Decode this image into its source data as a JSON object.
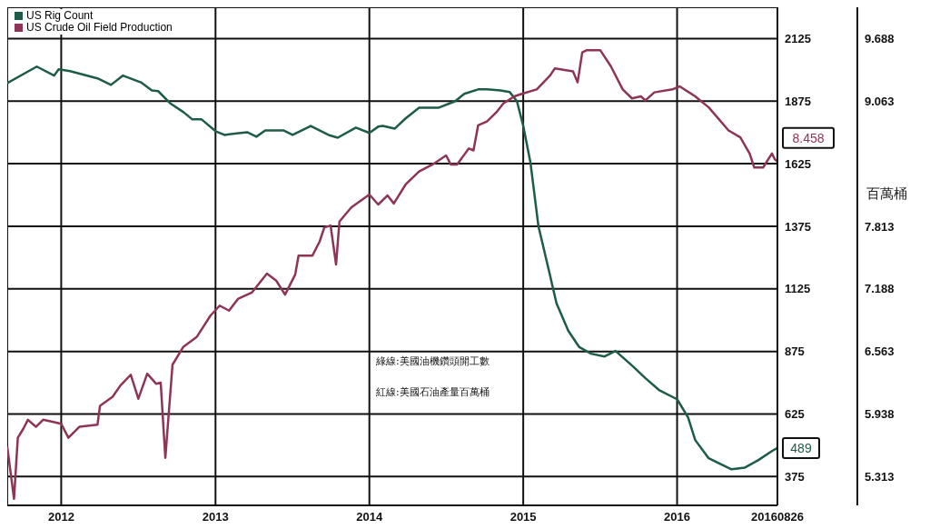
{
  "chart_data": {
    "type": "line",
    "xlim": [
      "2011-08-26",
      "2016-08-26"
    ],
    "xticks": [
      "2012",
      "2013",
      "2014",
      "2015",
      "2016",
      {
        "value": "2016-08-26",
        "label": "20160826"
      }
    ],
    "ylim": [
      260,
      2250
    ],
    "yticks": [
      375,
      625,
      875,
      1125,
      1375,
      1625,
      1875,
      2125
    ],
    "y2lim": [
      5.025,
      10.0
    ],
    "y2ticks": [
      5.313,
      5.938,
      6.563,
      7.188,
      7.813,
      9.063,
      9.688
    ],
    "y2label": "百萬桶",
    "grid": true,
    "legend": "top left",
    "annotations": [
      "綠線:美國油機鑽頭開工數",
      "紅線:美國石油產量百萬桶"
    ],
    "series": [
      {
        "name": "US Rig Count",
        "color": "#1d5c45",
        "x": [
          "2011-08-26",
          "2011-11-04",
          "2011-12-15",
          "2011-12-26",
          "2012-01-22",
          "2012-03-27",
          "2012-04-28",
          "2012-05-26",
          "2012-07-08",
          "2012-08-03",
          "2012-08-18",
          "2012-09-15",
          "2012-10-17",
          "2012-11-07",
          "2012-11-29",
          "2013-01-01",
          "2013-01-22",
          "2013-03-17",
          "2013-04-08",
          "2013-04-29",
          "2013-06-11",
          "2013-07-03",
          "2013-08-15",
          "2013-09-26",
          "2013-10-18",
          "2013-11-30",
          "2014-01-01",
          "2014-01-22",
          "2014-02-02",
          "2014-03-02",
          "2014-03-28",
          "2014-04-29",
          "2014-06-15",
          "2014-07-24",
          "2014-08-14",
          "2014-09-16",
          "2014-10-07",
          "2014-11-08",
          "2014-11-30",
          "2014-12-17",
          "2015-01-01",
          "2015-01-18",
          "2015-02-06",
          "2015-03-06",
          "2015-03-11",
          "2015-03-21",
          "2015-04-18",
          "2015-05-14",
          "2015-06-11",
          "2015-07-13",
          "2015-08-08",
          "2015-09-16",
          "2015-10-18",
          "2015-11-19",
          "2016-01-01",
          "2016-01-27",
          "2016-02-13",
          "2016-03-16",
          "2016-05-09",
          "2016-06-10",
          "2016-07-12",
          "2016-08-13",
          "2016-08-26"
        ],
        "values": [
          1947,
          2013,
          1977,
          2002,
          1995,
          1966,
          1940,
          1977,
          1950,
          1918,
          1915,
          1867,
          1831,
          1802,
          1802,
          1755,
          1740,
          1751,
          1733,
          1758,
          1758,
          1740,
          1776,
          1740,
          1729,
          1769,
          1748,
          1773,
          1776,
          1765,
          1806,
          1849,
          1849,
          1875,
          1904,
          1922,
          1922,
          1918,
          1911,
          1875,
          1776,
          1631,
          1376,
          1176,
          1139,
          1067,
          957,
          892,
          866,
          855,
          877,
          819,
          768,
          721,
          684,
          612,
          521,
          448,
          404,
          411,
          441,
          477,
          489
        ],
        "value_labels": [
          null,
          null,
          null,
          null,
          null,
          null,
          null,
          null,
          null,
          null,
          null,
          null,
          null,
          null,
          null,
          null,
          null,
          null,
          null,
          null,
          null,
          null,
          null,
          null,
          null,
          null,
          null,
          null,
          null,
          null,
          null,
          null,
          null,
          null,
          null,
          null,
          null,
          null,
          null,
          null,
          null,
          null,
          null,
          null,
          null,
          null,
          null,
          null,
          null,
          null,
          null,
          null,
          null,
          null,
          null,
          null,
          null,
          null,
          null,
          null,
          null,
          null,
          "489"
        ]
      },
      {
        "name": "US Crude Oil Field Production",
        "color": "#8e3557",
        "axis": "y2",
        "x": [
          "2011-08-26",
          "2011-09-11",
          "2011-09-20",
          "2011-10-03",
          "2011-10-14",
          "2011-11-02",
          "2011-11-19",
          "2011-12-11",
          "2012-01-01",
          "2012-01-18",
          "2012-02-13",
          "2012-03-27",
          "2012-04-02",
          "2012-05-02",
          "2012-05-20",
          "2012-06-14",
          "2012-07-02",
          "2012-07-23",
          "2012-08-13",
          "2012-08-24",
          "2012-09-04",
          "2012-09-21",
          "2012-10-17",
          "2012-11-18",
          "2012-12-20",
          "2013-01-11",
          "2013-02-02",
          "2013-02-24",
          "2013-03-28",
          "2013-05-03",
          "2013-05-25",
          "2013-06-15",
          "2013-07-09",
          "2013-07-17",
          "2013-08-19",
          "2013-09-05",
          "2013-09-16",
          "2013-10-01",
          "2013-10-14",
          "2013-10-22",
          "2013-11-19",
          "2014-01-01",
          "2014-01-22",
          "2014-02-13",
          "2014-02-28",
          "2014-03-28",
          "2014-04-29",
          "2014-05-31",
          "2014-07-02",
          "2014-07-13",
          "2014-07-28",
          "2014-08-25",
          "2014-09-05",
          "2014-09-16",
          "2014-10-07",
          "2014-10-29",
          "2014-11-15",
          "2014-12-11",
          "2015-01-01",
          "2015-02-02",
          "2015-03-06",
          "2015-03-17",
          "2015-04-29",
          "2015-05-10",
          "2015-05-21",
          "2015-05-31",
          "2015-07-03",
          "2015-07-28",
          "2015-08-25",
          "2015-09-16",
          "2015-10-07",
          "2015-10-18",
          "2015-11-08",
          "2015-12-21",
          "2016-01-07",
          "2016-02-13",
          "2016-03-16",
          "2016-05-02",
          "2016-05-30",
          "2016-06-21",
          "2016-07-02",
          "2016-07-23",
          "2016-08-13",
          "2016-08-20",
          "2016-08-26"
        ],
        "values": [
          5.61,
          5.09,
          5.7,
          5.79,
          5.88,
          5.81,
          5.88,
          5.86,
          5.84,
          5.7,
          5.81,
          5.83,
          6.02,
          6.11,
          6.22,
          6.33,
          6.09,
          6.34,
          6.24,
          6.25,
          5.5,
          6.43,
          6.61,
          6.71,
          6.92,
          7.02,
          6.97,
          7.09,
          7.15,
          7.34,
          7.27,
          7.13,
          7.33,
          7.52,
          7.52,
          7.66,
          7.8,
          7.82,
          7.43,
          7.86,
          8.0,
          8.13,
          8.03,
          8.12,
          8.04,
          8.23,
          8.36,
          8.43,
          8.52,
          8.43,
          8.43,
          8.59,
          8.57,
          8.82,
          8.86,
          8.95,
          9.04,
          9.11,
          9.14,
          9.18,
          9.32,
          9.39,
          9.36,
          9.25,
          9.55,
          9.57,
          9.57,
          9.41,
          9.18,
          9.09,
          9.11,
          9.07,
          9.15,
          9.18,
          9.21,
          9.11,
          9.0,
          8.77,
          8.7,
          8.54,
          8.4,
          8.4,
          8.54,
          8.48,
          8.458
        ],
        "value_labels": [
          null,
          null,
          null,
          null,
          null,
          null,
          null,
          null,
          null,
          null,
          null,
          null,
          null,
          null,
          null,
          null,
          null,
          null,
          null,
          null,
          null,
          null,
          null,
          null,
          null,
          null,
          null,
          null,
          null,
          null,
          null,
          null,
          null,
          null,
          null,
          null,
          null,
          null,
          null,
          null,
          null,
          null,
          null,
          null,
          null,
          null,
          null,
          null,
          null,
          null,
          null,
          null,
          null,
          null,
          null,
          null,
          null,
          null,
          null,
          null,
          null,
          null,
          null,
          null,
          null,
          null,
          null,
          null,
          null,
          null,
          null,
          null,
          null,
          null,
          null,
          null,
          null,
          null,
          null,
          null,
          null,
          null,
          null,
          null,
          "8.458"
        ]
      }
    ]
  }
}
